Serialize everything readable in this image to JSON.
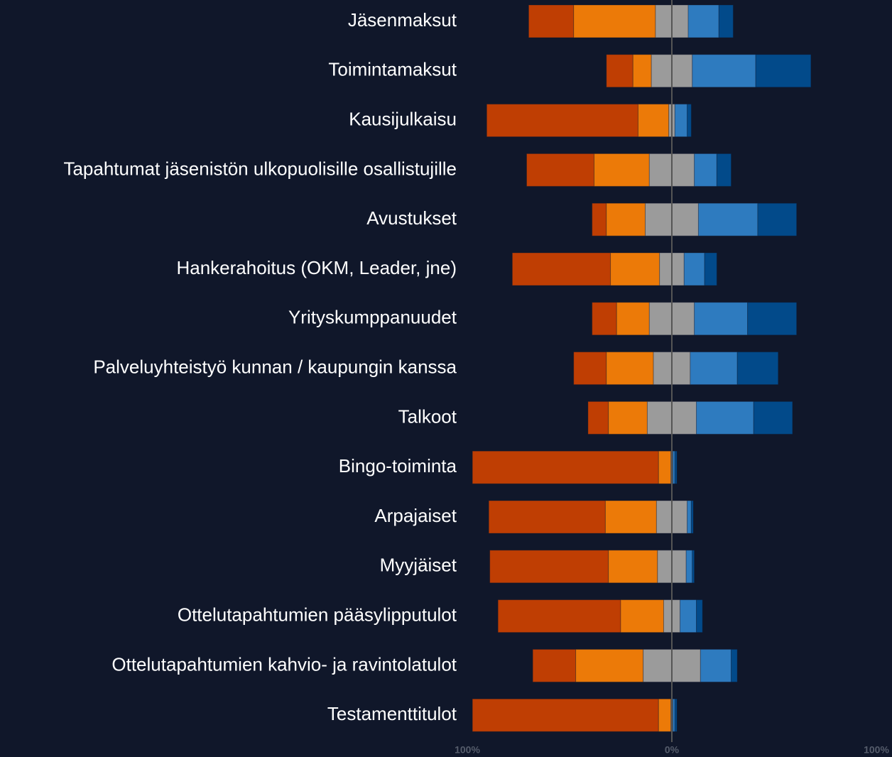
{
  "chart_data": {
    "type": "diverging_bar",
    "categories": [
      "Jäsenmaksut",
      "Toimintamaksut",
      "Kausijulkaisu",
      "Tapahtumat jäsenistön ulkopuolisille osallistujille",
      "Avustukset",
      "Hankerahoitus (OKM, Leader, jne)",
      "Yrityskumppanuudet",
      "Palveluyhteistyö kunnan / kaupungin kanssa",
      "Talkoot",
      "Bingo-toiminta",
      "Arpajaiset",
      "Myyjäiset",
      "Ottelutapahtumien pääsylipputulot",
      "Ottelutapahtumien kahvio- ja ravintolatulot",
      "Testamenttitulot"
    ],
    "series": [
      {
        "color": "#bf3e03",
        "values": [
          22,
          13,
          74,
          33,
          7,
          48,
          12,
          16,
          10,
          91,
          57,
          58,
          60,
          21,
          91
        ]
      },
      {
        "color": "#ec7a08",
        "values": [
          40,
          9,
          15,
          27,
          19,
          24,
          16,
          23,
          19,
          6,
          25,
          24,
          21,
          33,
          6
        ]
      },
      {
        "color": "#9b9b9b",
        "values": [
          16,
          20,
          3,
          22,
          26,
          12,
          22,
          18,
          24,
          1,
          15,
          14,
          8,
          28,
          1
        ]
      },
      {
        "color": "#2e7bbf",
        "values": [
          15,
          31,
          6,
          11,
          29,
          10,
          26,
          23,
          28,
          1,
          2,
          3,
          8,
          15,
          1
        ]
      },
      {
        "color": "#024a8a",
        "values": [
          7,
          27,
          2,
          7,
          19,
          6,
          24,
          20,
          19,
          1,
          1,
          1,
          3,
          3,
          1
        ]
      }
    ],
    "xlim": [
      -100,
      100
    ],
    "xticks": [
      {
        "value": -100,
        "label": "100%"
      },
      {
        "value": 0,
        "label": "0%"
      },
      {
        "value": 100,
        "label": "100%"
      }
    ]
  }
}
